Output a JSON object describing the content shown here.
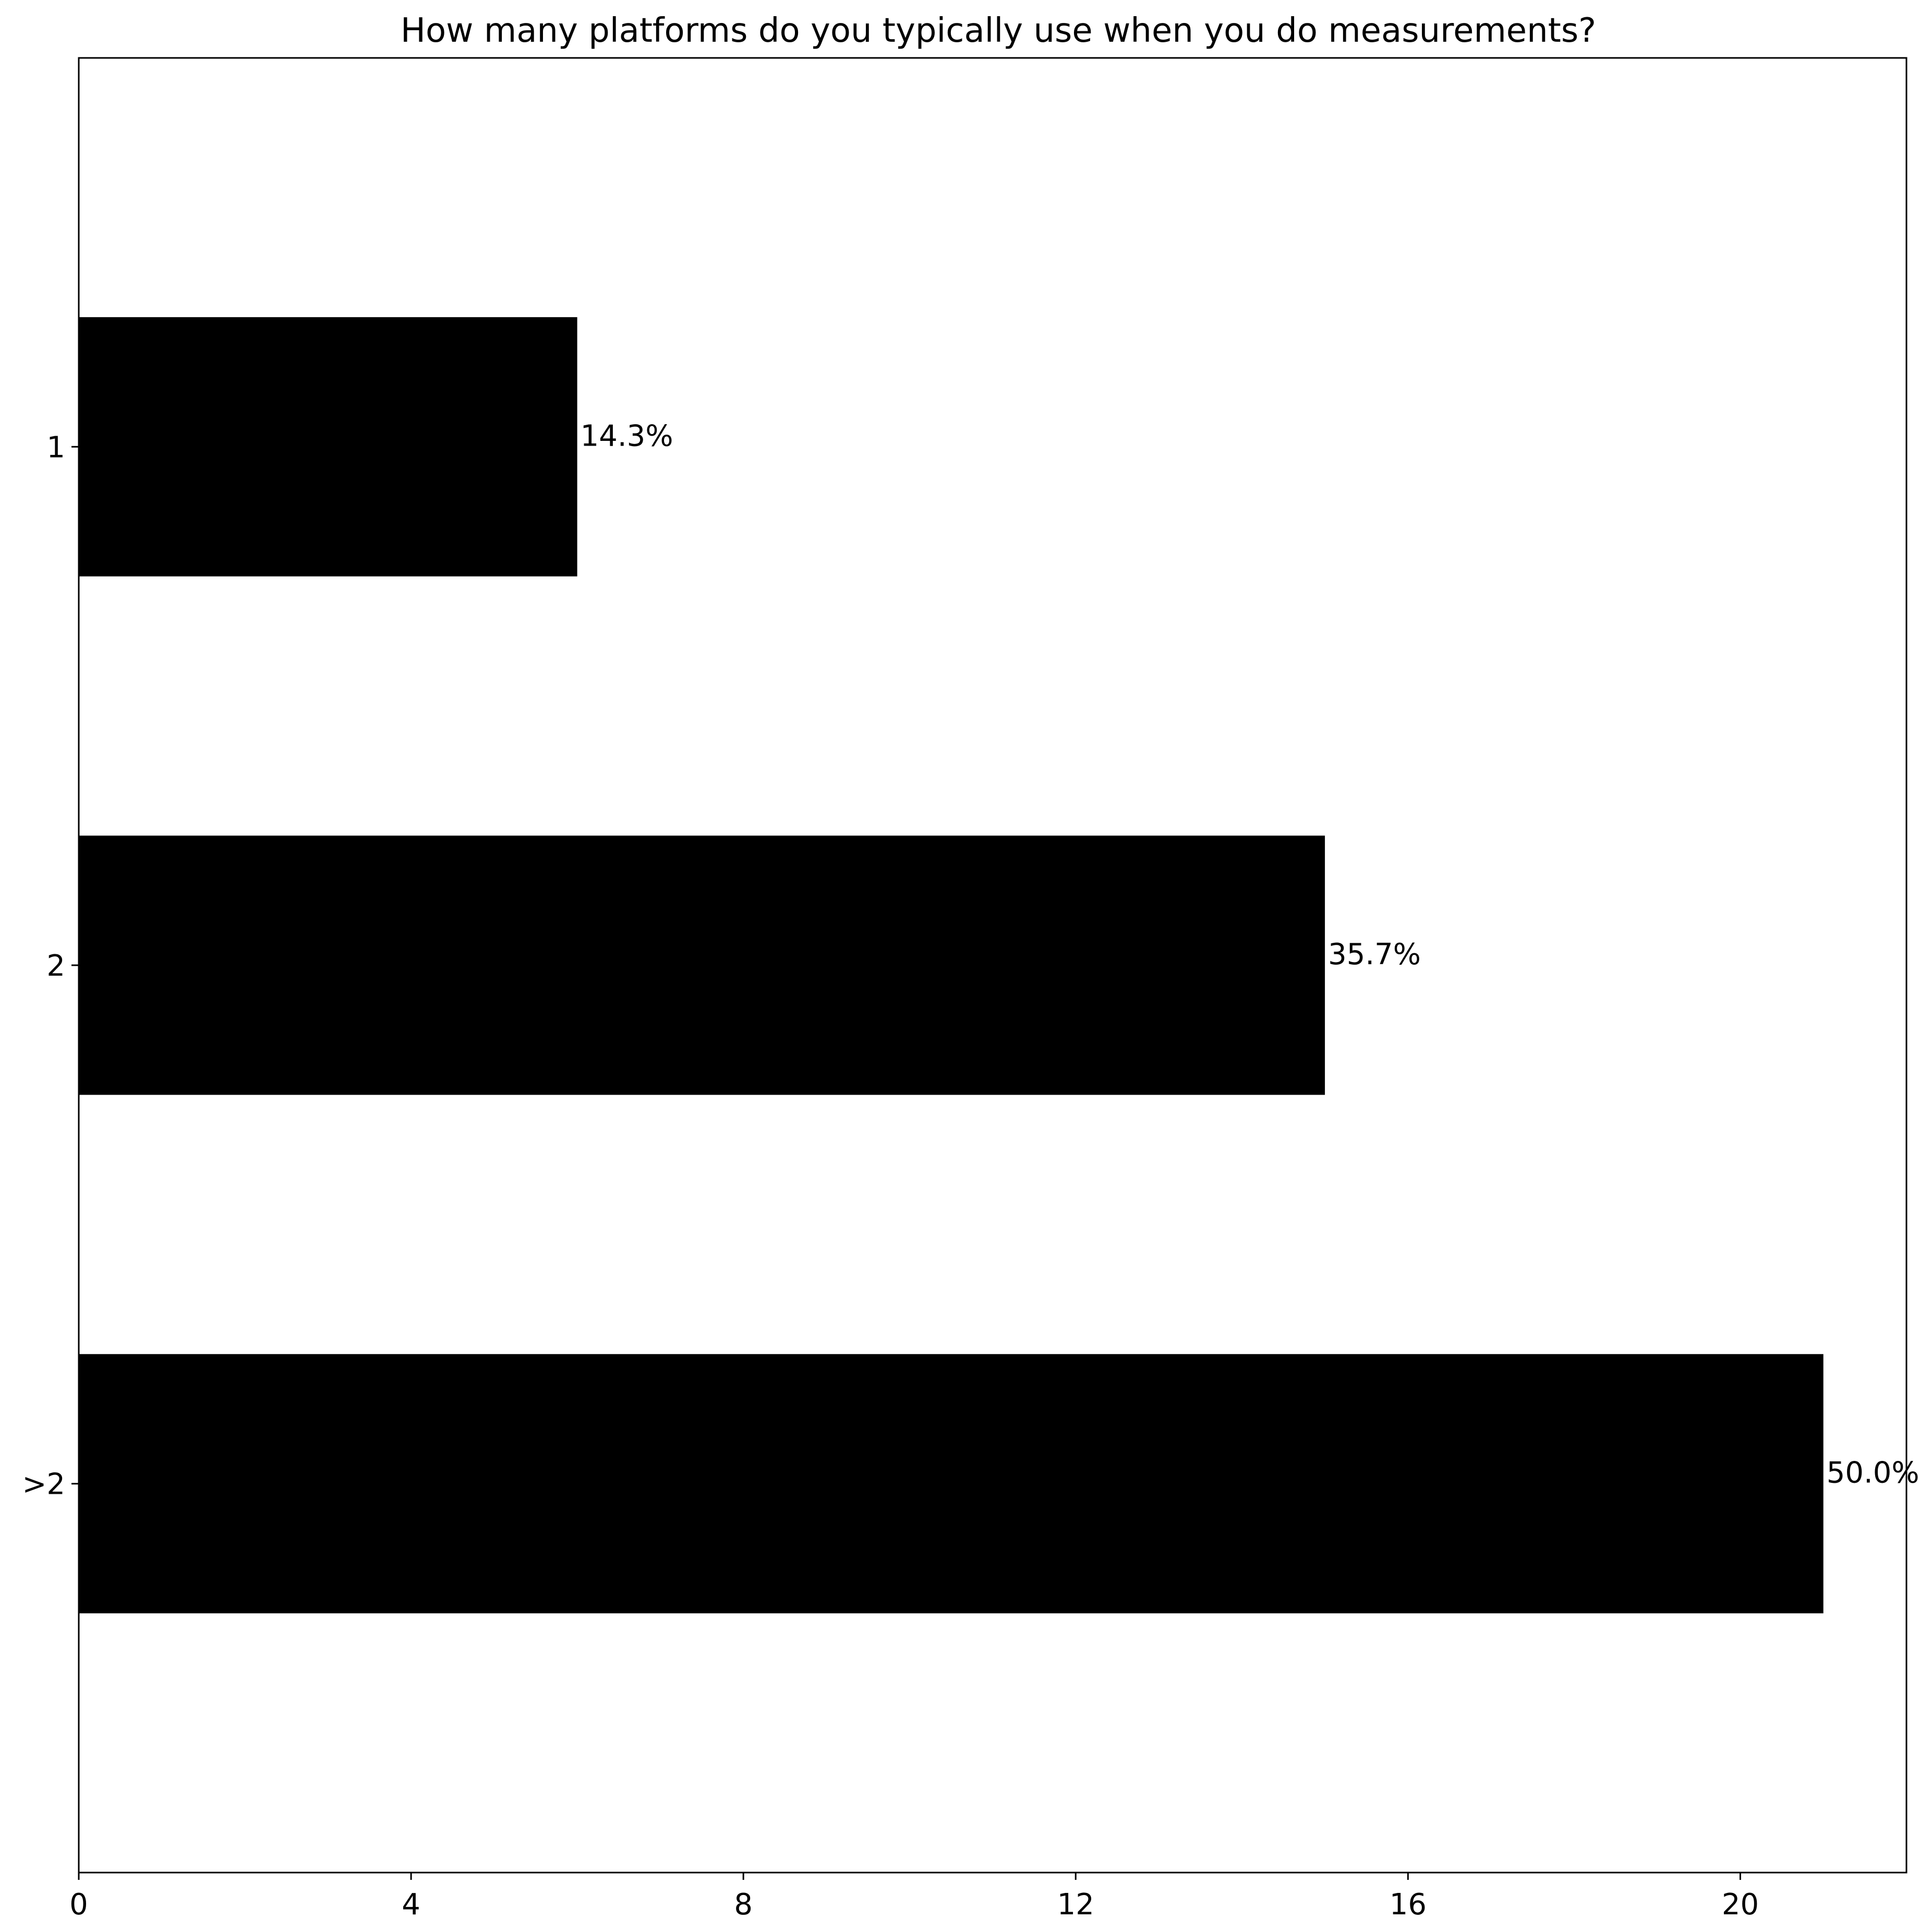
{
  "chart_data": {
    "type": "bar",
    "orientation": "horizontal",
    "title": "How many platforms do you typically use when you do measurements?",
    "xlabel": "",
    "ylabel": "",
    "categories": [
      "1",
      "2",
      ">2"
    ],
    "values": [
      6,
      15,
      21
    ],
    "data_labels": [
      "14.3%",
      "35.7%",
      "50.0%"
    ],
    "xlim": [
      0,
      22
    ],
    "x_ticks": [
      0,
      4,
      8,
      12,
      16,
      20
    ],
    "grid": false,
    "legend": "none",
    "bar_color": "#000000"
  }
}
